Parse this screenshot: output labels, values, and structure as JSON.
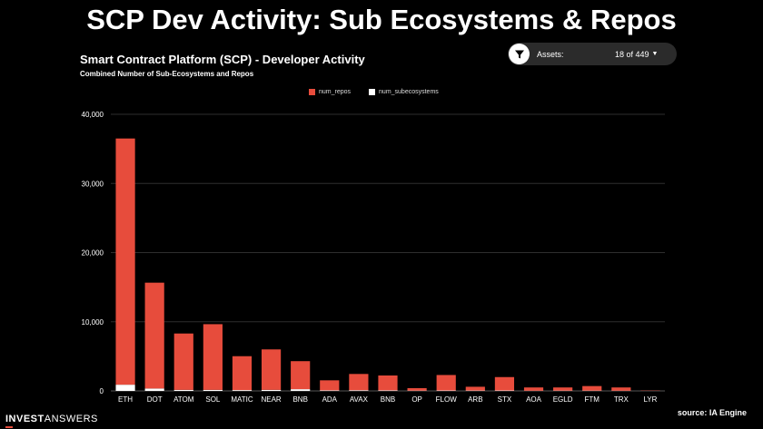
{
  "slide": {
    "title": "SCP Dev Activity: Sub Ecosystems & Repos"
  },
  "filter": {
    "label": "Assets:",
    "value": "18 of 449",
    "icon": "filter-icon"
  },
  "footer": {
    "logo_part1": "INVEST",
    "logo_part2": "ANSWERS",
    "source": "source: IA Engine"
  },
  "colors": {
    "repos": "#e74c3c",
    "subecosystems": "#ffffff",
    "background": "#000000",
    "gridline": "#2e2e2e"
  },
  "chart_data": {
    "type": "bar",
    "stacked": true,
    "title": "Smart Contract Platform (SCP) - Developer Activity",
    "subtitle": "Combined Number of Sub-Ecosystems and Repos",
    "categories": [
      "ETH",
      "DOT",
      "ATOM",
      "SOL",
      "MATIC",
      "NEAR",
      "BNB",
      "ADA",
      "AVAX",
      "BNB",
      "OP",
      "FLOW",
      "ARB",
      "STX",
      "AOA",
      "EGLD",
      "FTM",
      "TRX",
      "LYR"
    ],
    "series": [
      {
        "name": "num_subecosystems",
        "color": "#ffffff",
        "values": [
          900,
          350,
          150,
          150,
          120,
          150,
          250,
          80,
          100,
          80,
          40,
          60,
          50,
          60,
          30,
          40,
          40,
          30,
          10
        ]
      },
      {
        "name": "num_repos",
        "color": "#e74c3c",
        "values": [
          35600,
          15300,
          8150,
          9500,
          4900,
          5850,
          4050,
          1450,
          2350,
          2150,
          360,
          2240,
          550,
          1940,
          470,
          460,
          660,
          470,
          40
        ]
      }
    ],
    "ylim": [
      0,
      40000
    ],
    "yticks": [
      0,
      10000,
      20000,
      30000,
      40000
    ],
    "ytick_labels": [
      "0",
      "10,000",
      "20,000",
      "30,000",
      "40,000"
    ],
    "grid": true,
    "legend_position": "top-center"
  }
}
